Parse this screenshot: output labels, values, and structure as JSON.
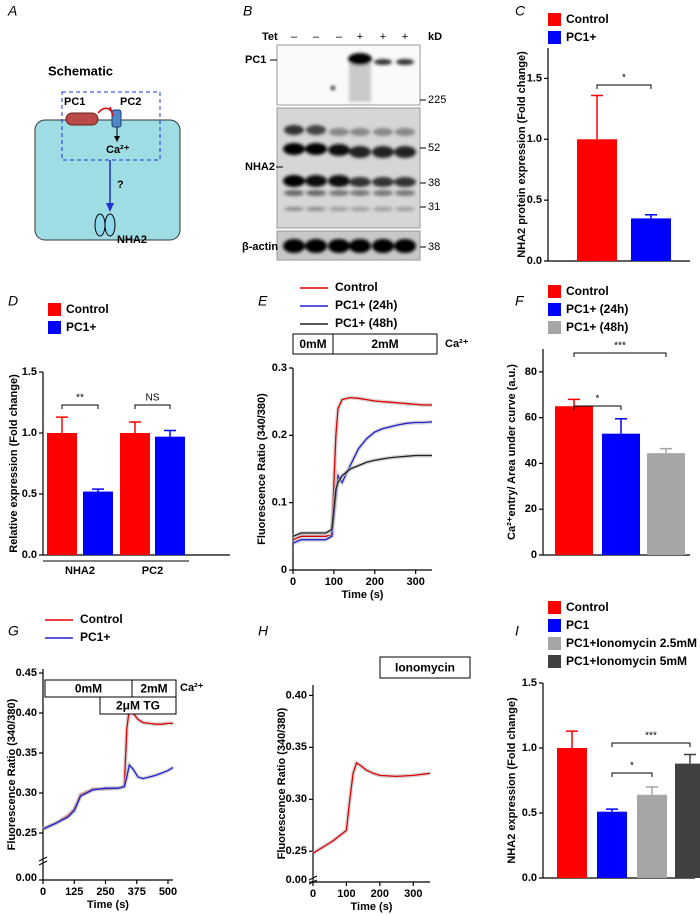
{
  "panel_labels": [
    "A",
    "B",
    "C",
    "D",
    "E",
    "F",
    "G",
    "H",
    "I"
  ],
  "schematic": {
    "title": "Schematic",
    "labels": [
      "PC1",
      "PC2",
      "Ca²⁺",
      "?",
      "NHA2"
    ]
  },
  "blot": {
    "treatment": "Tet",
    "conditions": [
      "–",
      "–",
      "–",
      "+",
      "+",
      "+"
    ],
    "unit": "kD",
    "rows": [
      "PC1",
      "NHA2",
      "β-actin"
    ],
    "markers": [
      "225",
      "52",
      "38",
      "31",
      "38"
    ]
  },
  "chart_data": [
    {
      "type": "bar",
      "ylabel": "NHA2 protein expression (Fold change)",
      "ylim": [
        0,
        1.75
      ],
      "yticks": [
        {
          "value": 0,
          "label": "0.0"
        },
        0.5,
        {
          "value": 1,
          "label": "1.0"
        },
        1.5
      ],
      "series": [
        {
          "name": "Control",
          "color": "#ff0000",
          "values": [
            1.0
          ],
          "errors": [
            0.36
          ]
        },
        {
          "name": "PC1+",
          "color": "#0000ff",
          "values": [
            0.35
          ],
          "errors": [
            0.03
          ]
        }
      ],
      "annotations": [
        "*"
      ]
    },
    {
      "type": "bar",
      "ylabel": "Relative expression (Fold change)",
      "categories": [
        "NHA2",
        "PC2"
      ],
      "ylim": [
        0,
        1.5
      ],
      "yticks": [
        {
          "value": 0,
          "label": "0.0"
        },
        0.5,
        {
          "value": 1,
          "label": "1.0"
        },
        1.5
      ],
      "series": [
        {
          "name": "Control",
          "color": "#ff0000",
          "values": [
            1.0,
            1.0
          ],
          "errors": [
            0.13,
            0.09
          ]
        },
        {
          "name": "PC1+",
          "color": "#0000ff",
          "values": [
            0.52,
            0.97
          ],
          "errors": [
            0.02,
            0.05
          ]
        }
      ],
      "annotations": [
        "**",
        "NS"
      ]
    },
    {
      "type": "line",
      "xlabel": "Time (s)",
      "ylabel": "Fluorescence Ratio (340/380)",
      "x": [
        0,
        20,
        40,
        60,
        80,
        95,
        105,
        110,
        120,
        140,
        160,
        180,
        200,
        220,
        240,
        260,
        280,
        300,
        320,
        340
      ],
      "xlim": [
        0,
        340
      ],
      "xticks": [
        0,
        100,
        200,
        300
      ],
      "ylim": [
        0,
        0.3
      ],
      "yticks": [
        0,
        0.1,
        0.2,
        0.3
      ],
      "series": [
        {
          "name": "Control",
          "color": "#e00000",
          "values": [
            0.045,
            0.05,
            0.05,
            0.05,
            0.05,
            0.052,
            0.2,
            0.24,
            0.253,
            0.256,
            0.255,
            0.253,
            0.251,
            0.25,
            0.249,
            0.248,
            0.247,
            0.246,
            0.245,
            0.245
          ]
        },
        {
          "name": "PC1+ (24h)",
          "color": "#2020d0",
          "values": [
            0.04,
            0.045,
            0.045,
            0.045,
            0.045,
            0.05,
            0.11,
            0.14,
            0.13,
            0.155,
            0.18,
            0.195,
            0.205,
            0.21,
            0.213,
            0.216,
            0.218,
            0.219,
            0.219,
            0.22
          ]
        },
        {
          "name": "PC1+ (48h)",
          "color": "#222222",
          "values": [
            0.05,
            0.055,
            0.055,
            0.055,
            0.055,
            0.06,
            0.12,
            0.13,
            0.14,
            0.15,
            0.155,
            0.16,
            0.163,
            0.165,
            0.167,
            0.168,
            0.169,
            0.17,
            0.17,
            0.17
          ]
        }
      ],
      "boxes": [
        "0mM",
        "2mM"
      ],
      "box_note": "Ca²⁺"
    },
    {
      "type": "bar",
      "ylabel": "Ca²⁺entry/ Area under curve (a.u.)",
      "ylim": [
        0,
        90
      ],
      "yticks": [
        0,
        20,
        40,
        60,
        80
      ],
      "series": [
        {
          "name": "Control",
          "color": "#ff0000",
          "values": [
            65
          ],
          "errors": [
            3
          ]
        },
        {
          "name": "PC1+ (24h)",
          "color": "#0000ff",
          "values": [
            53
          ],
          "errors": [
            6.5
          ]
        },
        {
          "name": "PC1+ (48h)",
          "color": "#a6a6a6",
          "values": [
            44.5
          ],
          "errors": [
            2
          ]
        }
      ],
      "annotations": [
        "*",
        "***"
      ]
    },
    {
      "type": "line",
      "xlabel": "Time (s)",
      "ylabel": "Fluorescence Ratio (340/380)",
      "x": [
        0,
        50,
        100,
        125,
        150,
        200,
        250,
        300,
        325,
        335,
        345,
        360,
        380,
        400,
        425,
        450,
        475,
        500,
        520
      ],
      "xlim": [
        0,
        520
      ],
      "xticks": [
        0,
        125,
        250,
        375,
        500
      ],
      "ylim": [
        0.225,
        0.455
      ],
      "yticks": [
        0.25,
        {
          "value": 0.3,
          "label": "0.30"
        },
        0.35,
        {
          "value": 0.4,
          "label": "0.40"
        },
        0.45
      ],
      "axis_break_tick": {
        "value": 0,
        "label": "0.00"
      },
      "series": [
        {
          "name": "Control",
          "color": "#e00000",
          "values": [
            0.255,
            0.262,
            0.272,
            0.28,
            0.298,
            0.305,
            0.305,
            0.306,
            0.308,
            0.38,
            0.405,
            0.4,
            0.392,
            0.388,
            0.387,
            0.386,
            0.386,
            0.387,
            0.387
          ]
        },
        {
          "name": "PC1+",
          "color": "#2020d0",
          "values": [
            0.255,
            0.262,
            0.27,
            0.278,
            0.296,
            0.304,
            0.306,
            0.306,
            0.308,
            0.32,
            0.335,
            0.33,
            0.32,
            0.318,
            0.32,
            0.322,
            0.325,
            0.328,
            0.332
          ]
        }
      ],
      "boxes": [
        "0mM",
        "2mM",
        "2μM TG"
      ],
      "box_note": "Ca²⁺"
    },
    {
      "type": "line",
      "xlabel": "Time (s)",
      "ylabel": "Fluorescence Ratio (340/380)",
      "x": [
        0,
        20,
        40,
        60,
        80,
        100,
        110,
        120,
        130,
        140,
        160,
        180,
        200,
        250,
        300,
        350
      ],
      "xlim": [
        0,
        350
      ],
      "xticks": [
        0,
        100,
        200,
        300
      ],
      "ylim": [
        0.23,
        0.41
      ],
      "yticks": [
        0.25,
        {
          "value": 0.3,
          "label": "0.30"
        },
        0.35,
        {
          "value": 0.4,
          "label": "0.40"
        }
      ],
      "axis_break_tick": {
        "value": 0,
        "label": "0.00"
      },
      "series": [
        {
          "color": "#e00000",
          "values": [
            0.248,
            0.252,
            0.256,
            0.26,
            0.265,
            0.27,
            0.3,
            0.325,
            0.335,
            0.333,
            0.328,
            0.325,
            0.323,
            0.322,
            0.323,
            0.325
          ]
        }
      ],
      "boxes": [
        "Ionomycin"
      ]
    },
    {
      "type": "bar",
      "ylabel": "NHA2 expression (Fold change)",
      "ylim": [
        0,
        1.5
      ],
      "yticks": [
        {
          "value": 0,
          "label": "0.0"
        },
        0.5,
        {
          "value": 1,
          "label": "1.0"
        },
        1.5
      ],
      "series": [
        {
          "name": "Control",
          "color": "#ff0000",
          "values": [
            1.0
          ],
          "errors": [
            0.13
          ]
        },
        {
          "name": "PC1",
          "color": "#0000ff",
          "values": [
            0.51
          ],
          "errors": [
            0.02
          ]
        },
        {
          "name": "PC1+Ionomycin 2.5mM",
          "color": "#a6a6a6",
          "values": [
            0.64
          ],
          "errors": [
            0.06
          ]
        },
        {
          "name": "PC1+Ionomycin 5mM",
          "color": "#404040",
          "values": [
            0.88
          ],
          "errors": [
            0.07
          ]
        }
      ],
      "annotations": [
        "*",
        "***"
      ]
    }
  ]
}
